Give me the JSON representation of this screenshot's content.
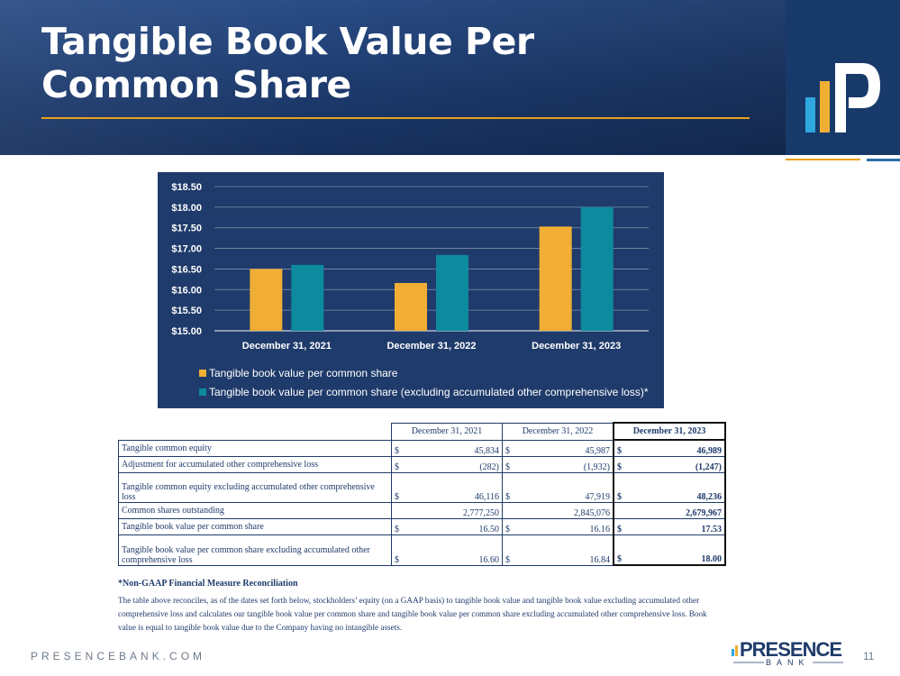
{
  "slide": {
    "title_line1": "Tangible Book Value Per",
    "title_line2": "Common Share",
    "footer_url": "PRESENCEBANK.COM",
    "page_number": "11",
    "brand_logo_text": "PRESENCE",
    "brand_logo_sub": "BANK"
  },
  "colors": {
    "header": "#1d3b6e",
    "accent_gold": "#e8a21a",
    "series1": "#f0ae35",
    "series2": "#0d8a9e",
    "chart_bg": "#1f3b6b"
  },
  "chart_data": {
    "type": "bar",
    "categories": [
      "December 31, 2021",
      "December 31, 2022",
      "December 31, 2023"
    ],
    "series": [
      {
        "name": "Tangible book value per common share",
        "values": [
          16.5,
          16.16,
          17.53
        ]
      },
      {
        "name": "Tangible book value per common share (excluding accumulated other comprehensive loss)*",
        "values": [
          16.6,
          16.84,
          18.0
        ]
      }
    ],
    "ylim": [
      15.0,
      18.5
    ],
    "yticks": [
      "$15.00",
      "$15.50",
      "$16.00",
      "$16.50",
      "$17.00",
      "$17.50",
      "$18.00",
      "$18.50"
    ],
    "grid": true,
    "legend_position": "bottom-left"
  },
  "table": {
    "headers": [
      "December 31, 2021",
      "December 31, 2022",
      "December 31, 2023"
    ],
    "rows": [
      {
        "label": "Tangible common equity",
        "cells": [
          [
            "$",
            "45,834"
          ],
          [
            "$",
            "45,987"
          ],
          [
            "$",
            "46,989"
          ]
        ]
      },
      {
        "label": "Adjustment for accumulated other comprehensive loss",
        "cells": [
          [
            "$",
            "(282)"
          ],
          [
            "$",
            "(1,932)"
          ],
          [
            "$",
            "(1,247)"
          ]
        ]
      },
      {
        "label": "Tangible common equity excluding accumulated other comprehensive loss",
        "cells": [
          [
            "$",
            "46,116"
          ],
          [
            "$",
            "47,919"
          ],
          [
            "$",
            "48,236"
          ]
        ]
      },
      {
        "label": "Common shares outstanding",
        "cells": [
          [
            "",
            "2,777,250"
          ],
          [
            "",
            "2,845,076"
          ],
          [
            "",
            "2,679,967"
          ]
        ]
      },
      {
        "label": "Tangible book value per common share",
        "cells": [
          [
            "$",
            "16.50"
          ],
          [
            "$",
            "16.16"
          ],
          [
            "$",
            "17.53"
          ]
        ]
      },
      {
        "label": "Tangible book value per common share excluding accumulated other comprehensive loss",
        "cells": [
          [
            "$",
            "16.60"
          ],
          [
            "$",
            "16.84"
          ],
          [
            "$",
            "18.00"
          ]
        ]
      }
    ]
  },
  "note": {
    "title": "*Non-GAAP Financial Measure Reconciliation",
    "text": "The table above reconciles, as of the dates set forth below, stockholders’ equity (on a GAAP basis) to tangible book value and tangible book value excluding accumulated other comprehensive loss and calculates our tangible book value per common share and tangible book value per common share excluding accumulated other comprehensive loss.  Book value is equal to tangible book value due to the Company having no intangible assets."
  }
}
